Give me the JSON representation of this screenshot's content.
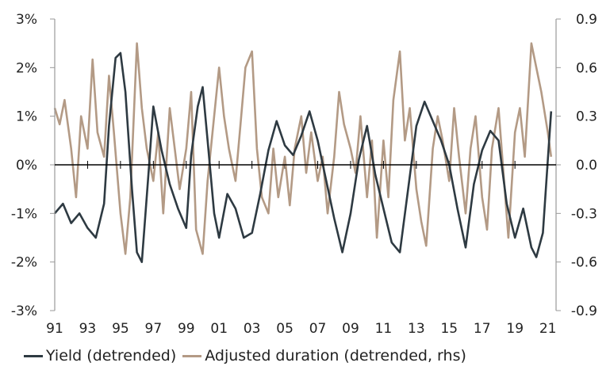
{
  "chart_data": {
    "type": "line",
    "xlabel": "",
    "ylabel": "",
    "x_tick_labels": [
      "91",
      "93",
      "95",
      "97",
      "99",
      "01",
      "03",
      "05",
      "07",
      "09",
      "11",
      "13",
      "15",
      "17",
      "19",
      "21"
    ],
    "x_tick_years": [
      1991,
      1993,
      1995,
      1997,
      1999,
      2001,
      2003,
      2005,
      2007,
      2009,
      2011,
      2013,
      2015,
      2017,
      2019,
      2021
    ],
    "xlim": [
      1991,
      2021.5
    ],
    "y_left": {
      "ticks": [
        "3%",
        "2%",
        "1%",
        "0%",
        "-1%",
        "-2%",
        "-3%"
      ],
      "values": [
        3,
        2,
        1,
        0,
        -1,
        -2,
        -3
      ],
      "ylim": [
        -3,
        3
      ]
    },
    "y_right": {
      "ticks": [
        "0.9",
        "0.6",
        "0.3",
        "0.0",
        "-0.3",
        "-0.6",
        "-0.9"
      ],
      "values": [
        0.9,
        0.6,
        0.3,
        0,
        -0.3,
        -0.6,
        -0.9
      ],
      "ylim": [
        -0.9,
        0.9
      ]
    },
    "grid": false,
    "legend_position": "bottom",
    "series": [
      {
        "name": "Yield (detrended)",
        "axis": "left",
        "color": "#2e3a42",
        "x": [
          1991.0,
          1991.5,
          1992.0,
          1992.5,
          1993.0,
          1993.5,
          1994.0,
          1994.3,
          1994.7,
          1995.0,
          1995.3,
          1995.7,
          1996.0,
          1996.3,
          1996.7,
          1997.0,
          1997.5,
          1998.0,
          1998.5,
          1999.0,
          1999.3,
          1999.7,
          2000.0,
          2000.3,
          2000.7,
          2001.0,
          2001.5,
          2002.0,
          2002.5,
          2003.0,
          2003.5,
          2004.0,
          2004.5,
          2005.0,
          2005.5,
          2006.0,
          2006.5,
          2007.0,
          2007.5,
          2008.0,
          2008.5,
          2009.0,
          2009.5,
          2010.0,
          2010.5,
          2011.0,
          2011.5,
          2012.0,
          2012.5,
          2013.0,
          2013.5,
          2014.0,
          2014.5,
          2015.0,
          2015.5,
          2016.0,
          2016.5,
          2017.0,
          2017.5,
          2018.0,
          2018.5,
          2019.0,
          2019.5,
          2020.0,
          2020.3,
          2020.7,
          2021.0,
          2021.2
        ],
        "values": [
          -1.0,
          -0.8,
          -1.2,
          -1.0,
          -1.3,
          -1.5,
          -0.8,
          0.8,
          2.2,
          2.3,
          1.5,
          -0.5,
          -1.8,
          -2.0,
          -0.2,
          1.2,
          0.3,
          -0.4,
          -0.9,
          -1.3,
          0.2,
          1.2,
          1.6,
          0.5,
          -1.0,
          -1.5,
          -0.6,
          -0.9,
          -1.5,
          -1.4,
          -0.6,
          0.3,
          0.9,
          0.4,
          0.2,
          0.6,
          1.1,
          0.5,
          -0.3,
          -1.1,
          -1.8,
          -1.0,
          0.1,
          0.8,
          -0.2,
          -0.9,
          -1.6,
          -1.8,
          -0.5,
          0.8,
          1.3,
          0.9,
          0.5,
          0.0,
          -0.9,
          -1.7,
          -0.4,
          0.3,
          0.7,
          0.5,
          -0.8,
          -1.5,
          -0.9,
          -1.7,
          -1.9,
          -1.4,
          0.1,
          1.1
        ]
      },
      {
        "name": "Adjusted duration (detrended, rhs)",
        "axis": "right",
        "color": "#b39a85",
        "x": [
          1991.0,
          1991.3,
          1991.6,
          1992.0,
          1992.3,
          1992.6,
          1993.0,
          1993.3,
          1993.6,
          1994.0,
          1994.3,
          1994.6,
          1995.0,
          1995.3,
          1995.6,
          1996.0,
          1996.3,
          1996.6,
          1997.0,
          1997.3,
          1997.6,
          1998.0,
          1998.3,
          1998.6,
          1999.0,
          1999.3,
          1999.6,
          2000.0,
          2000.3,
          2000.6,
          2001.0,
          2001.3,
          2001.6,
          2002.0,
          2002.3,
          2002.6,
          2003.0,
          2003.3,
          2003.6,
          2004.0,
          2004.3,
          2004.6,
          2005.0,
          2005.3,
          2005.6,
          2006.0,
          2006.3,
          2006.6,
          2007.0,
          2007.3,
          2007.6,
          2008.0,
          2008.3,
          2008.6,
          2009.0,
          2009.3,
          2009.6,
          2010.0,
          2010.3,
          2010.6,
          2011.0,
          2011.3,
          2011.6,
          2012.0,
          2012.3,
          2012.6,
          2013.0,
          2013.3,
          2013.6,
          2014.0,
          2014.3,
          2014.6,
          2015.0,
          2015.3,
          2015.6,
          2016.0,
          2016.3,
          2016.6,
          2017.0,
          2017.3,
          2017.6,
          2018.0,
          2018.3,
          2018.6,
          2019.0,
          2019.3,
          2019.6,
          2020.0,
          2020.3,
          2020.6,
          2021.0,
          2021.2
        ],
        "values": [
          0.35,
          0.25,
          0.4,
          0.1,
          -0.2,
          0.3,
          0.1,
          0.65,
          0.2,
          0.05,
          0.55,
          0.2,
          -0.3,
          -0.55,
          -0.2,
          0.75,
          0.35,
          0.1,
          -0.1,
          0.2,
          -0.3,
          0.35,
          0.1,
          -0.15,
          0.1,
          0.45,
          -0.4,
          -0.55,
          -0.1,
          0.2,
          0.6,
          0.3,
          0.1,
          -0.1,
          0.25,
          0.6,
          0.7,
          0.1,
          -0.2,
          -0.3,
          0.1,
          -0.2,
          0.05,
          -0.25,
          0.1,
          0.3,
          -0.05,
          0.2,
          -0.1,
          0.05,
          -0.3,
          0.05,
          0.45,
          0.25,
          0.1,
          -0.05,
          0.3,
          -0.2,
          0.15,
          -0.45,
          0.15,
          -0.2,
          0.4,
          0.7,
          0.15,
          0.35,
          -0.15,
          -0.35,
          -0.5,
          0.1,
          0.3,
          0.15,
          -0.1,
          0.35,
          0.05,
          -0.3,
          0.1,
          0.3,
          -0.2,
          -0.4,
          0.1,
          0.35,
          -0.05,
          -0.45,
          0.2,
          0.35,
          0.05,
          0.75,
          0.6,
          0.45,
          0.2,
          0.05
        ]
      }
    ]
  }
}
